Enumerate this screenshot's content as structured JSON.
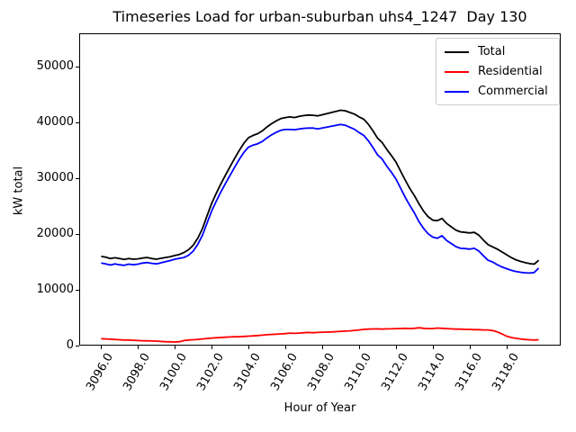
{
  "title": "Timeseries Load for urban-suburban uhs4_1247  Day 130",
  "axes": {
    "xlabel": "Hour of Year",
    "ylabel": "kW total"
  },
  "chart_data": {
    "type": "line",
    "title": "Timeseries Load for urban-suburban uhs4_1247  Day 130",
    "xlabel": "Hour of Year",
    "ylabel": "kW total",
    "xlim": [
      3094.81,
      3120.94
    ],
    "ylim": [
      0,
      56000
    ],
    "grid": false,
    "legend_position": "upper right",
    "xticks": {
      "values": [
        3096,
        3098,
        3100,
        3102,
        3104,
        3106,
        3108,
        3110,
        3112,
        3114,
        3116,
        3118
      ],
      "labels": [
        "3096.0",
        "3098.0",
        "3100.0",
        "3102.0",
        "3104.0",
        "3106.0",
        "3108.0",
        "3110.0",
        "3112.0",
        "3114.0",
        "3116.0",
        "3118.0"
      ]
    },
    "yticks": {
      "values": [
        0,
        10000,
        20000,
        30000,
        40000,
        50000
      ],
      "labels": [
        "0",
        "10000",
        "20000",
        "30000",
        "40000",
        "50000"
      ]
    },
    "x": [
      3096,
      3096.25,
      3096.5,
      3096.75,
      3097,
      3097.25,
      3097.5,
      3097.75,
      3098,
      3098.25,
      3098.5,
      3098.75,
      3099,
      3099.25,
      3099.5,
      3099.75,
      3100,
      3100.25,
      3100.5,
      3100.75,
      3101,
      3101.25,
      3101.5,
      3101.75,
      3102,
      3102.25,
      3102.5,
      3102.75,
      3103,
      3103.25,
      3103.5,
      3103.75,
      3104,
      3104.25,
      3104.5,
      3104.75,
      3105,
      3105.25,
      3105.5,
      3105.75,
      3106,
      3106.25,
      3106.5,
      3106.75,
      3107,
      3107.25,
      3107.5,
      3107.75,
      3108,
      3108.25,
      3108.5,
      3108.75,
      3109,
      3109.25,
      3109.5,
      3109.75,
      3110,
      3110.25,
      3110.5,
      3110.75,
      3111,
      3111.25,
      3111.5,
      3111.75,
      3112,
      3112.25,
      3112.5,
      3112.75,
      3113,
      3113.25,
      3113.5,
      3113.75,
      3114,
      3114.25,
      3114.5,
      3114.75,
      3115,
      3115.25,
      3115.5,
      3115.75,
      3116,
      3116.25,
      3116.5,
      3116.75,
      3117,
      3117.25,
      3117.5,
      3117.75,
      3118,
      3118.25,
      3118.5,
      3118.75,
      3119,
      3119.25,
      3119.5,
      3119.75
    ],
    "series": [
      {
        "name": "Total",
        "color": "#000000",
        "values": [
          16000,
          15850,
          15600,
          15750,
          15600,
          15450,
          15600,
          15500,
          15550,
          15700,
          15800,
          15600,
          15500,
          15650,
          15800,
          15950,
          16150,
          16350,
          16700,
          17200,
          18000,
          19300,
          21000,
          23300,
          25500,
          27300,
          29000,
          30600,
          32100,
          33600,
          35000,
          36300,
          37300,
          37700,
          38000,
          38500,
          39200,
          39800,
          40300,
          40700,
          40900,
          41000,
          40900,
          41100,
          41250,
          41350,
          41300,
          41200,
          41400,
          41600,
          41800,
          42000,
          42200,
          42100,
          41800,
          41500,
          41000,
          40600,
          39700,
          38500,
          37200,
          36400,
          35200,
          34100,
          32900,
          31300,
          29700,
          28200,
          26900,
          25400,
          24100,
          23100,
          22500,
          22400,
          22800,
          21900,
          21300,
          20700,
          20400,
          20300,
          20200,
          20300,
          19800,
          18900,
          18100,
          17700,
          17300,
          16800,
          16300,
          15800,
          15400,
          15100,
          14900,
          14700,
          14600,
          15300
        ]
      },
      {
        "name": "Residential",
        "color": "#ff0000",
        "values": [
          1250,
          1200,
          1150,
          1100,
          1050,
          1000,
          1000,
          950,
          900,
          870,
          850,
          820,
          800,
          750,
          700,
          680,
          650,
          700,
          900,
          1000,
          1050,
          1120,
          1200,
          1280,
          1350,
          1400,
          1450,
          1500,
          1550,
          1580,
          1600,
          1650,
          1700,
          1750,
          1800,
          1880,
          1950,
          2000,
          2050,
          2100,
          2150,
          2250,
          2200,
          2250,
          2300,
          2350,
          2300,
          2350,
          2400,
          2420,
          2450,
          2500,
          2550,
          2600,
          2650,
          2720,
          2800,
          2900,
          2950,
          2980,
          3000,
          2950,
          3000,
          3000,
          3050,
          3050,
          3100,
          3050,
          3100,
          3200,
          3100,
          3050,
          3050,
          3150,
          3100,
          3050,
          3000,
          2950,
          2950,
          2900,
          2900,
          2850,
          2850,
          2800,
          2800,
          2700,
          2450,
          2100,
          1700,
          1450,
          1300,
          1200,
          1100,
          1050,
          1000,
          1050
        ]
      },
      {
        "name": "Commercial",
        "color": "#0000ff",
        "values": [
          14800,
          14650,
          14450,
          14650,
          14500,
          14400,
          14600,
          14500,
          14600,
          14800,
          14900,
          14750,
          14650,
          14850,
          15050,
          15250,
          15500,
          15650,
          15800,
          16200,
          16950,
          18200,
          19800,
          22000,
          24150,
          25900,
          27550,
          29100,
          30550,
          32000,
          33400,
          34650,
          35600,
          35950,
          36200,
          36600,
          37250,
          37800,
          38250,
          38600,
          38750,
          38750,
          38700,
          38850,
          38950,
          39000,
          39000,
          38850,
          39000,
          39180,
          39350,
          39500,
          39650,
          39500,
          39150,
          38780,
          38200,
          37700,
          36750,
          35520,
          34200,
          33450,
          32200,
          31100,
          29850,
          28250,
          26600,
          25150,
          23800,
          22200,
          21000,
          20050,
          19450,
          19250,
          19700,
          18850,
          18300,
          17750,
          17450,
          17400,
          17300,
          17450,
          16950,
          16100,
          15300,
          15000,
          14500,
          14100,
          13800,
          13500,
          13300,
          13150,
          13050,
          13000,
          13100,
          13900
        ]
      }
    ]
  }
}
